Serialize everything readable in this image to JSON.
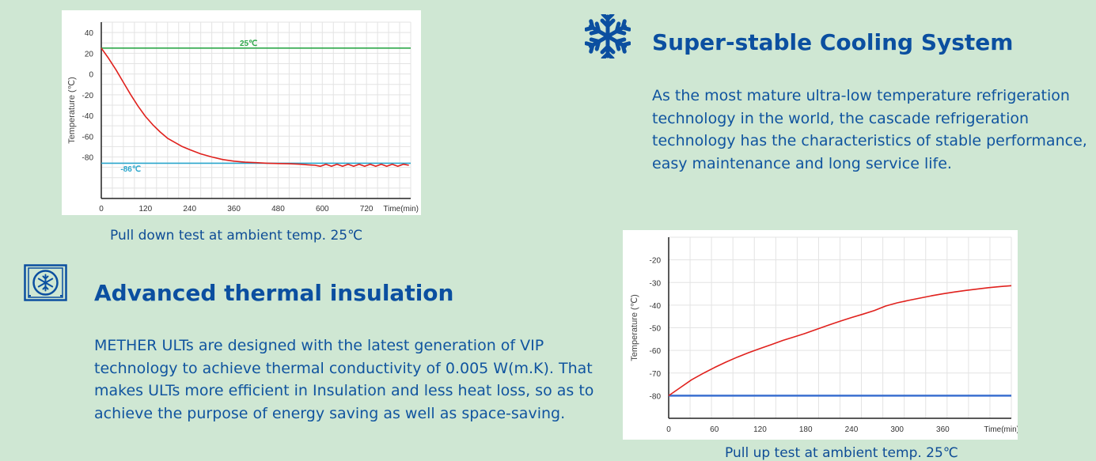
{
  "charts": {
    "pull_down_caption": "Pull down test at ambient temp. 25℃",
    "pull_up_caption": "Pull up test at ambient temp. 25℃"
  },
  "sections": {
    "cooling": {
      "icon": "snowflake-icon",
      "title": "Super-stable Cooling System",
      "body": "As the most mature ultra-low temperature refrigeration technology in the world, the cascade refrigeration technology has the characteristics of stable performance, easy maintenance and long service life."
    },
    "insulation": {
      "icon": "freezer-snowflake-icon",
      "title": "Advanced thermal insulation",
      "body": "METHER ULTs are designed with the latest generation of VIP technology to achieve thermal conductivity of 0.005 W(m.K). That makes ULTs more efficient in Insulation and less heat loss, so as to achieve the purpose of energy saving as well as space-saving."
    }
  },
  "colors": {
    "background": "#cfe7d3",
    "accent_blue": "#0b4fa0",
    "curve_red": "#e0211d",
    "ambient_green": "#2ea84a",
    "target_cyan": "#2aa6cc",
    "target_blue": "#3a6fd0"
  },
  "chart_data": [
    {
      "type": "line",
      "ylabel": "Temperature (℃)",
      "xlabel": "Time(min)",
      "x_ticks": [
        0,
        120,
        240,
        360,
        480,
        600,
        720
      ],
      "y_ticks": [
        40,
        20,
        0,
        -20,
        -40,
        -60,
        -80
      ],
      "xlim": [
        0,
        840
      ],
      "ylim": [
        -120,
        50
      ],
      "grid": true,
      "annotations": [
        {
          "text": "25℃",
          "x": 400,
          "y": 27
        },
        {
          "text": "-86℃",
          "x": 80,
          "y": -94
        }
      ],
      "series": [
        {
          "color": "#2ea84a",
          "x": [
            0,
            840
          ],
          "y": [
            25,
            25
          ]
        },
        {
          "color": "#2aa6cc",
          "x": [
            0,
            840
          ],
          "y": [
            -86,
            -86
          ]
        },
        {
          "color": "#e0211d",
          "x": [
            0,
            20,
            40,
            60,
            80,
            100,
            120,
            140,
            160,
            180,
            200,
            220,
            240,
            270,
            300,
            330,
            360,
            390,
            420,
            450,
            480,
            510,
            540,
            560,
            580,
            595,
            610,
            625,
            640,
            655,
            670,
            685,
            700,
            715,
            730,
            745,
            760,
            775,
            790,
            805,
            820,
            835
          ],
          "y": [
            25,
            15,
            4,
            -8,
            -20,
            -31,
            -41,
            -49,
            -56,
            -62,
            -66,
            -70,
            -73,
            -77,
            -80,
            -82.5,
            -84,
            -85,
            -85.5,
            -86,
            -86.3,
            -86.5,
            -87,
            -87.5,
            -88,
            -89,
            -87,
            -89,
            -87,
            -89,
            -87,
            -89,
            -87,
            -89,
            -87,
            -89,
            -87,
            -89,
            -87,
            -89,
            -87,
            -88
          ]
        }
      ]
    },
    {
      "type": "line",
      "ylabel": "Temperature (℃)",
      "xlabel": "Time(min)",
      "x_ticks": [
        0,
        60,
        120,
        180,
        240,
        300,
        360
      ],
      "y_ticks": [
        -20,
        -30,
        -40,
        -50,
        -60,
        -70,
        -80
      ],
      "xlim": [
        0,
        450
      ],
      "ylim": [
        -90,
        -10
      ],
      "grid": true,
      "series": [
        {
          "color": "#3a6fd0",
          "x": [
            0,
            450
          ],
          "y": [
            -80,
            -80
          ]
        },
        {
          "color": "#e0211d",
          "x": [
            0,
            15,
            30,
            45,
            60,
            75,
            90,
            105,
            120,
            135,
            150,
            165,
            180,
            195,
            210,
            225,
            240,
            255,
            270,
            285,
            300,
            315,
            330,
            345,
            360,
            375,
            390,
            405,
            420,
            435,
            450
          ],
          "y": [
            -80,
            -76.5,
            -73,
            -70.2,
            -67.6,
            -65.2,
            -63,
            -61,
            -59.2,
            -57.4,
            -55.6,
            -54,
            -52.4,
            -50.6,
            -48.8,
            -47.1,
            -45.5,
            -44,
            -42.4,
            -40.4,
            -39,
            -37.9,
            -36.9,
            -35.9,
            -35,
            -34.2,
            -33.5,
            -32.9,
            -32.3,
            -31.8,
            -31.4
          ]
        }
      ]
    }
  ]
}
